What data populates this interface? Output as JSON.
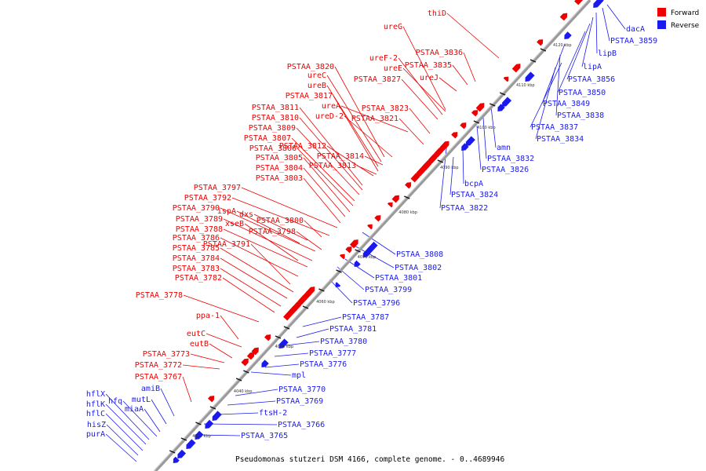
{
  "caption": "Pseudomonas stutzeri DSM 4166, complete genome. - 0..4689946",
  "legend": [
    {
      "label": "Forward",
      "color": "#ee0000"
    },
    {
      "label": "Reverse",
      "color": "#1a1aee"
    }
  ],
  "colors": {
    "forward": "#ee0000",
    "reverse": "#1a1aee",
    "axis": "#999999"
  },
  "ticks": [
    "4030 kbp",
    "4040 kbp",
    "4050 kbp",
    "4060 kbp",
    "4070 kbp",
    "4080 kbp",
    "4090 kbp",
    "4100 kbp",
    "4110 kbp",
    "4120 kbp"
  ],
  "forward_labels": [
    "thiD",
    "PSTAA_3836",
    "ureG",
    "ureF-2",
    "PSTAA_3835",
    "ureE",
    "PSTAA_3827",
    "ureJ",
    "PSTAA_3820",
    "ureC",
    "ureB",
    "PSTAA_3817",
    "ureA",
    "PSTAA_3823",
    "ureD-2",
    "PSTAA_3821",
    "PSTAA_3811",
    "PSTAA_3810",
    "PSTAA_3809",
    "PSTAA_3807",
    "PSTAA_3812",
    "PSTAA_3806",
    "PSTAA_3814",
    "PSTAA_3805",
    "PSTAA_3813",
    "PSTAA_3804",
    "PSTAA_3803",
    "PSTAA_3797",
    "PSTAA_3792",
    "ispA",
    "dxs",
    "PSTAA_3800",
    "PSTAA_3790",
    "xseB",
    "PSTAA_3798",
    "PSTAA_3789",
    "PSTAA_3788",
    "PSTAA_3786",
    "PSTAA_3791",
    "PSTAA_3785",
    "PSTAA_3784",
    "PSTAA_3783",
    "PSTAA_3782",
    "PSTAA_3778",
    "ppa-1",
    "eutC",
    "eutB",
    "PSTAA_3773",
    "PSTAA_3772",
    "PSTAA_3767"
  ],
  "reverse_labels": [
    "dacA",
    "PSTAA_3859",
    "lipB",
    "lipA",
    "PSTAA_3856",
    "PSTAA_3850",
    "PSTAA_3849",
    "PSTAA_3838",
    "PSTAA_3837",
    "PSTAA_3834",
    "amn",
    "PSTAA_3832",
    "PSTAA_3826",
    "bcpA",
    "PSTAA_3824",
    "PSTAA_3822",
    "PSTAA_3808",
    "PSTAA_3802",
    "PSTAA_3801",
    "PSTAA_3799",
    "PSTAA_3796",
    "PSTAA_3787",
    "PSTAA_3781",
    "PSTAA_3780",
    "PSTAA_3777",
    "PSTAA_3776",
    "mpl",
    "PSTAA_3770",
    "PSTAA_3769",
    "ftsH-2",
    "PSTAA_3766",
    "PSTAA_3765"
  ],
  "left_labels": [
    "amiB",
    "hflX",
    "mutL",
    "hflK",
    "hfq",
    "miaA",
    "hflC",
    "hisZ",
    "purA"
  ]
}
